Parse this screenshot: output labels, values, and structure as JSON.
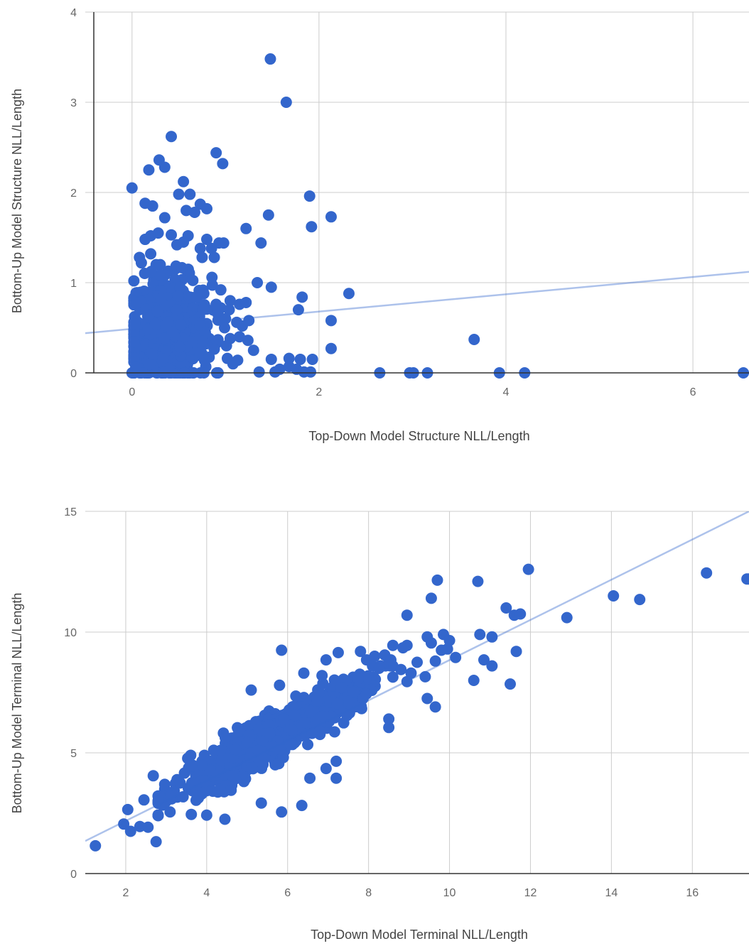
{
  "chart_data": [
    {
      "type": "scatter",
      "title": "",
      "xlabel": "Top-Down Model Structure NLL/Length",
      "ylabel": "Bottom-Up Model Structure NLL/Length",
      "xlim": [
        -0.5,
        6.6
      ],
      "ylim": [
        0,
        4
      ],
      "xticks": [
        0,
        2,
        4,
        6
      ],
      "yticks": [
        0,
        1,
        2,
        3,
        4
      ],
      "grid": true,
      "point_color": "#3366cc",
      "trendline": {
        "color": "#3366cc",
        "x": [
          -0.5,
          6.6
        ],
        "y": [
          0.44,
          1.12
        ]
      },
      "series": [
        {
          "points": [
            [
              1.48,
              3.48
            ],
            [
              1.65,
              3.0
            ],
            [
              0.42,
              2.62
            ],
            [
              0.9,
              2.44
            ],
            [
              0.97,
              2.32
            ],
            [
              0.29,
              2.36
            ],
            [
              0.35,
              2.28
            ],
            [
              0.18,
              2.25
            ],
            [
              0.0,
              2.05
            ],
            [
              0.55,
              2.12
            ],
            [
              0.62,
              1.98
            ],
            [
              0.5,
              1.98
            ],
            [
              1.9,
              1.96
            ],
            [
              0.14,
              1.88
            ],
            [
              0.22,
              1.85
            ],
            [
              0.73,
              1.87
            ],
            [
              0.8,
              1.82
            ],
            [
              0.67,
              1.78
            ],
            [
              0.58,
              1.8
            ],
            [
              0.35,
              1.72
            ],
            [
              1.46,
              1.75
            ],
            [
              2.13,
              1.73
            ],
            [
              1.92,
              1.62
            ],
            [
              1.22,
              1.6
            ],
            [
              0.28,
              1.55
            ],
            [
              0.42,
              1.53
            ],
            [
              0.2,
              1.52
            ],
            [
              0.14,
              1.48
            ],
            [
              0.6,
              1.52
            ],
            [
              0.8,
              1.48
            ],
            [
              0.98,
              1.44
            ],
            [
              0.93,
              1.44
            ],
            [
              1.38,
              1.44
            ],
            [
              0.48,
              1.42
            ],
            [
              0.55,
              1.45
            ],
            [
              0.73,
              1.38
            ],
            [
              0.85,
              1.38
            ],
            [
              0.08,
              1.28
            ],
            [
              0.2,
              1.32
            ],
            [
              0.88,
              1.28
            ],
            [
              0.75,
              1.28
            ],
            [
              0.1,
              1.22
            ],
            [
              0.02,
              1.02
            ],
            [
              1.34,
              1.0
            ],
            [
              1.49,
              0.95
            ],
            [
              0.95,
              0.92
            ],
            [
              1.82,
              0.84
            ],
            [
              2.32,
              0.88
            ],
            [
              1.05,
              0.8
            ],
            [
              1.15,
              0.76
            ],
            [
              1.22,
              0.78
            ],
            [
              1.78,
              0.7
            ],
            [
              0.95,
              0.72
            ],
            [
              0.9,
              0.76
            ],
            [
              0.92,
              0.68
            ],
            [
              1.04,
              0.7
            ],
            [
              1.0,
              0.6
            ],
            [
              1.12,
              0.56
            ],
            [
              1.18,
              0.52
            ],
            [
              1.25,
              0.58
            ],
            [
              0.99,
              0.5
            ],
            [
              2.13,
              0.58
            ],
            [
              3.66,
              0.37
            ],
            [
              0.03,
              0.54
            ],
            [
              1.15,
              0.4
            ],
            [
              1.24,
              0.36
            ],
            [
              1.05,
              0.38
            ],
            [
              1.01,
              0.3
            ],
            [
              1.3,
              0.25
            ],
            [
              2.13,
              0.27
            ],
            [
              1.02,
              0.16
            ],
            [
              1.13,
              0.14
            ],
            [
              1.08,
              0.1
            ],
            [
              1.49,
              0.15
            ],
            [
              1.68,
              0.16
            ],
            [
              1.8,
              0.15
            ],
            [
              1.93,
              0.15
            ],
            [
              1.58,
              0.04
            ],
            [
              1.68,
              0.07
            ],
            [
              1.76,
              0.04
            ],
            [
              1.36,
              0.01
            ],
            [
              1.53,
              0.01
            ],
            [
              1.84,
              0.01
            ],
            [
              1.91,
              0.01
            ],
            [
              2.65,
              0.0
            ],
            [
              2.97,
              0.0
            ],
            [
              3.01,
              0.0
            ],
            [
              3.16,
              0.0
            ],
            [
              3.93,
              0.0
            ],
            [
              4.2,
              0.0
            ],
            [
              6.54,
              0.0
            ],
            [
              0.0,
              0.0
            ],
            [
              0.02,
              0.12
            ],
            [
              0.04,
              0.06
            ]
          ]
        }
      ],
      "dense_cluster": {
        "x_range": [
          0.02,
          0.92
        ],
        "y_range": [
          0.0,
          1.2
        ],
        "center": [
          0.4,
          0.45
        ],
        "count": 650
      }
    },
    {
      "type": "scatter",
      "title": "",
      "xlabel": "Top-Down Model Terminal NLL/Length",
      "ylabel": "Bottom-Up Model Terminal NLL/Length",
      "xlim": [
        1.0,
        17.4
      ],
      "ylim": [
        0,
        15
      ],
      "xticks": [
        2,
        4,
        6,
        8,
        10,
        12,
        14,
        16
      ],
      "yticks": [
        0,
        5,
        10,
        15
      ],
      "grid": true,
      "point_color": "#3366cc",
      "trendline": {
        "color": "#3366cc",
        "x": [
          1.0,
          17.4
        ],
        "y": [
          1.35,
          15.0
        ]
      },
      "series": [
        {
          "points": [
            [
              1.25,
              1.15
            ],
            [
              1.95,
              2.05
            ],
            [
              2.12,
              1.75
            ],
            [
              2.35,
              1.95
            ],
            [
              2.55,
              1.92
            ],
            [
              2.05,
              2.65
            ],
            [
              2.45,
              3.05
            ],
            [
              2.75,
              1.32
            ],
            [
              2.68,
              4.05
            ],
            [
              3.62,
              2.45
            ],
            [
              4.0,
              2.42
            ],
            [
              4.45,
              2.25
            ],
            [
              5.85,
              2.55
            ],
            [
              6.35,
              2.82
            ],
            [
              5.35,
              2.92
            ],
            [
              6.55,
              3.95
            ],
            [
              6.95,
              4.35
            ],
            [
              7.2,
              3.95
            ],
            [
              7.2,
              4.65
            ],
            [
              8.5,
              6.05
            ],
            [
              8.5,
              6.4
            ],
            [
              9.45,
              7.25
            ],
            [
              9.65,
              6.9
            ],
            [
              10.6,
              8.0
            ],
            [
              10.85,
              8.85
            ],
            [
              11.05,
              8.6
            ],
            [
              11.5,
              7.85
            ],
            [
              11.65,
              9.2
            ],
            [
              10.75,
              9.9
            ],
            [
              11.05,
              9.8
            ],
            [
              9.7,
              12.15
            ],
            [
              9.55,
              11.4
            ],
            [
              10.7,
              12.1
            ],
            [
              11.4,
              11.0
            ],
            [
              11.6,
              10.7
            ],
            [
              11.75,
              10.75
            ],
            [
              11.95,
              12.6
            ],
            [
              12.9,
              10.6
            ],
            [
              14.05,
              11.5
            ],
            [
              14.7,
              11.35
            ],
            [
              16.35,
              12.45
            ],
            [
              17.35,
              12.2
            ],
            [
              17.4,
              12.2
            ],
            [
              8.95,
              10.7
            ],
            [
              9.45,
              9.8
            ],
            [
              9.85,
              9.9
            ],
            [
              9.95,
              9.3
            ],
            [
              10.0,
              9.65
            ],
            [
              10.15,
              8.95
            ],
            [
              9.55,
              9.55
            ],
            [
              9.8,
              9.25
            ],
            [
              9.65,
              8.8
            ],
            [
              9.2,
              8.75
            ],
            [
              9.05,
              8.3
            ],
            [
              9.4,
              8.15
            ],
            [
              8.8,
              8.45
            ],
            [
              8.95,
              7.95
            ],
            [
              5.85,
              9.25
            ],
            [
              7.25,
              9.15
            ],
            [
              6.95,
              8.85
            ],
            [
              6.85,
              8.2
            ],
            [
              6.4,
              8.3
            ],
            [
              5.1,
              7.6
            ],
            [
              5.8,
              7.8
            ],
            [
              7.95,
              8.85
            ],
            [
              8.4,
              9.05
            ],
            [
              8.6,
              9.45
            ],
            [
              8.15,
              9.0
            ],
            [
              7.8,
              9.2
            ],
            [
              8.95,
              9.45
            ],
            [
              8.85,
              9.35
            ],
            [
              8.55,
              8.85
            ]
          ]
        }
      ],
      "dense_cluster": {
        "x_range": [
          2.8,
          8.6
        ],
        "y_range": [
          2.4,
          8.6
        ],
        "center": [
          5.6,
          5.6
        ],
        "count": 900
      }
    }
  ]
}
